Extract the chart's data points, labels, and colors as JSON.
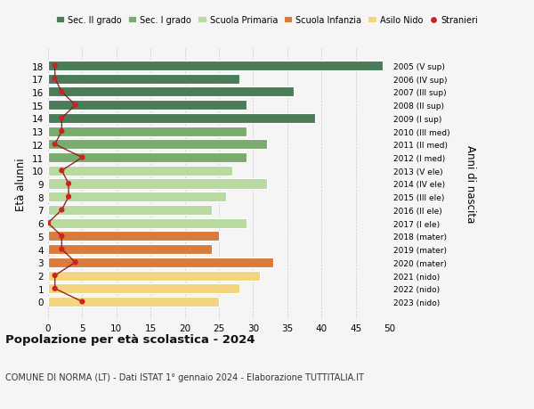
{
  "ages": [
    18,
    17,
    16,
    15,
    14,
    13,
    12,
    11,
    10,
    9,
    8,
    7,
    6,
    5,
    4,
    3,
    2,
    1,
    0
  ],
  "bar_values": [
    49,
    28,
    36,
    29,
    39,
    29,
    32,
    29,
    27,
    32,
    26,
    24,
    29,
    25,
    24,
    33,
    31,
    28,
    25
  ],
  "stranieri_values": [
    1,
    1,
    2,
    4,
    2,
    2,
    1,
    5,
    2,
    3,
    3,
    2,
    0,
    2,
    2,
    4,
    1,
    1,
    5
  ],
  "right_labels": [
    "2005 (V sup)",
    "2006 (IV sup)",
    "2007 (III sup)",
    "2008 (II sup)",
    "2009 (I sup)",
    "2010 (III med)",
    "2011 (II med)",
    "2012 (I med)",
    "2013 (V ele)",
    "2014 (IV ele)",
    "2015 (III ele)",
    "2016 (II ele)",
    "2017 (I ele)",
    "2018 (mater)",
    "2019 (mater)",
    "2020 (mater)",
    "2021 (nido)",
    "2022 (nido)",
    "2023 (nido)"
  ],
  "bar_colors": [
    "#4a7c59",
    "#4a7c59",
    "#4a7c59",
    "#4a7c59",
    "#4a7c59",
    "#7aab6e",
    "#7aab6e",
    "#7aab6e",
    "#b8d9a0",
    "#b8d9a0",
    "#b8d9a0",
    "#b8d9a0",
    "#b8d9a0",
    "#d97b3a",
    "#d97b3a",
    "#d97b3a",
    "#f2d57e",
    "#f2d57e",
    "#f2d57e"
  ],
  "legend_labels": [
    "Sec. II grado",
    "Sec. I grado",
    "Scuola Primaria",
    "Scuola Infanzia",
    "Asilo Nido",
    "Stranieri"
  ],
  "legend_colors": [
    "#4a7c59",
    "#7aab6e",
    "#b8d9a0",
    "#d97b3a",
    "#f2d57e",
    "#cc2222"
  ],
  "stranieri_color": "#cc2222",
  "stranieri_line_color": "#8b1010",
  "ylabel": "Età alunni",
  "right_ylabel": "Anni di nascita",
  "title": "Popolazione per età scolastica - 2024",
  "subtitle": "COMUNE DI NORMA (LT) - Dati ISTAT 1° gennaio 2024 - Elaborazione TUTTITALIA.IT",
  "xlim": [
    0,
    50
  ],
  "xticks": [
    0,
    5,
    10,
    15,
    20,
    25,
    30,
    35,
    40,
    45,
    50
  ],
  "background_color": "#f5f5f5",
  "grid_color": "#cccccc"
}
